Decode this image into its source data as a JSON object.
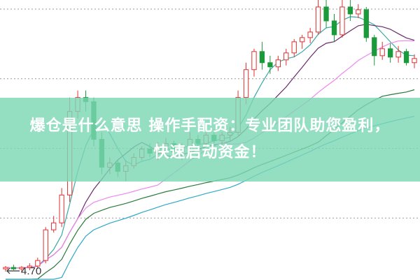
{
  "title_line1": "爆仓是什么意思 操作手配资：专业团队助您盈利，",
  "title_line2": "快速启动资金！",
  "chart_data": {
    "type": "candlestick",
    "price_label": "4.70",
    "ylim": [
      4.645,
      6.65
    ],
    "grid": true,
    "gridlines": [
      5.085,
      5.585,
      6.085,
      6.585
    ],
    "colors": {
      "up": "#e03030",
      "down": "#1a9a3a",
      "ma5": "#3aa8a8",
      "ma10": "#6a2a6a",
      "ma20": "#ee88ee",
      "ma40": "#2a7a3a",
      "ma60": "#30a8c8"
    },
    "ohlc": [
      [
        4.72,
        4.74,
        4.7,
        4.73
      ],
      [
        4.73,
        4.75,
        4.71,
        4.72
      ],
      [
        4.72,
        4.74,
        4.7,
        4.73
      ],
      [
        4.73,
        4.76,
        4.71,
        4.74
      ],
      [
        4.74,
        4.8,
        4.72,
        4.78
      ],
      [
        4.78,
        5.02,
        4.76,
        5.0
      ],
      [
        5.0,
        5.1,
        4.98,
        5.05
      ],
      [
        5.05,
        5.3,
        5.02,
        5.25
      ],
      [
        5.25,
        5.95,
        5.2,
        5.85
      ],
      [
        5.85,
        6.0,
        5.8,
        5.95
      ],
      [
        5.95,
        6.0,
        5.85,
        5.92
      ],
      [
        5.92,
        5.95,
        5.6,
        5.65
      ],
      [
        5.65,
        5.7,
        5.4,
        5.45
      ],
      [
        5.45,
        5.52,
        5.4,
        5.48
      ],
      [
        5.48,
        5.5,
        5.38,
        5.42
      ],
      [
        5.42,
        5.5,
        5.35,
        5.46
      ],
      [
        5.46,
        5.55,
        5.44,
        5.52
      ],
      [
        5.52,
        5.6,
        5.5,
        5.58
      ],
      [
        5.58,
        5.62,
        5.52,
        5.55
      ],
      [
        5.55,
        5.63,
        5.5,
        5.6
      ],
      [
        5.6,
        5.66,
        5.55,
        5.62
      ],
      [
        5.62,
        5.64,
        5.52,
        5.56
      ],
      [
        5.56,
        5.62,
        5.5,
        5.6
      ],
      [
        5.6,
        5.7,
        5.55,
        5.65
      ],
      [
        5.65,
        5.68,
        5.58,
        5.62
      ],
      [
        5.62,
        5.7,
        5.6,
        5.68
      ],
      [
        5.68,
        5.72,
        5.62,
        5.64
      ],
      [
        5.64,
        5.7,
        5.6,
        5.68
      ],
      [
        5.68,
        5.74,
        5.64,
        5.7
      ],
      [
        5.7,
        6.0,
        5.68,
        5.95
      ],
      [
        5.95,
        6.2,
        5.9,
        6.15
      ],
      [
        6.15,
        6.3,
        6.1,
        6.28
      ],
      [
        6.28,
        6.35,
        6.15,
        6.2
      ],
      [
        6.2,
        6.25,
        6.12,
        6.17
      ],
      [
        6.17,
        6.25,
        6.14,
        6.22
      ],
      [
        6.22,
        6.3,
        6.18,
        6.27
      ],
      [
        6.27,
        6.37,
        6.24,
        6.35
      ],
      [
        6.35,
        6.4,
        6.3,
        6.38
      ],
      [
        6.38,
        6.45,
        6.34,
        6.42
      ],
      [
        6.42,
        6.65,
        6.4,
        6.6
      ],
      [
        6.6,
        6.65,
        6.45,
        6.5
      ],
      [
        6.5,
        6.55,
        6.35,
        6.4
      ],
      [
        6.4,
        6.65,
        6.38,
        6.6
      ],
      [
        6.6,
        6.65,
        6.5,
        6.55
      ],
      [
        6.55,
        6.62,
        6.52,
        6.58
      ],
      [
        6.58,
        6.6,
        6.35,
        6.38
      ],
      [
        6.38,
        6.4,
        6.18,
        6.25
      ],
      [
        6.25,
        6.35,
        6.22,
        6.3
      ],
      [
        6.3,
        6.34,
        6.2,
        6.24
      ],
      [
        6.24,
        6.32,
        6.2,
        6.28
      ],
      [
        6.28,
        6.3,
        6.18,
        6.2
      ],
      [
        6.2,
        6.26,
        6.16,
        6.23
      ]
    ]
  }
}
